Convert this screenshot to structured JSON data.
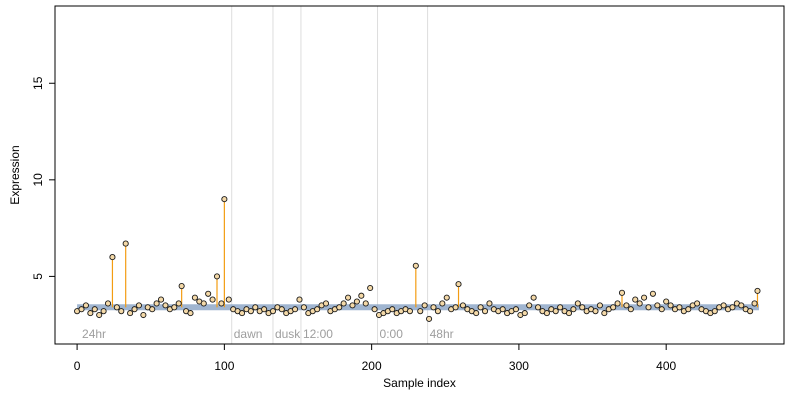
{
  "chart_data": {
    "type": "scatter",
    "title": "",
    "xlabel": "Sample index",
    "ylabel": "Expression",
    "xlim": [
      -15,
      480
    ],
    "ylim": [
      1.5,
      19
    ],
    "x_ticks": [
      0,
      100,
      200,
      300,
      400
    ],
    "y_ticks": [
      5,
      10,
      15
    ],
    "grid": false,
    "legend": "none",
    "colors": {
      "point_fill": "#f4d9a8",
      "point_stroke": "#1a1a1a",
      "stem": "#f39c12",
      "baseline": "#8fa8c8",
      "section_line": "#dddddd",
      "section_text": "#9e9e9e"
    },
    "baseline_value": 3.4,
    "baseline_x_range": [
      0,
      463
    ],
    "sections": [
      {
        "label": "24hr",
        "x": 2
      },
      {
        "label": "dawn",
        "x": 105
      },
      {
        "label": "dusk",
        "x": 133
      },
      {
        "label": "12:00",
        "x": 152
      },
      {
        "label": "0:00",
        "x": 204
      },
      {
        "label": "48hr",
        "x": 238
      }
    ],
    "boundaries": [
      105,
      133,
      152,
      204,
      238
    ],
    "stems": [
      {
        "x": 24,
        "y": 6.0
      },
      {
        "x": 33,
        "y": 6.7
      },
      {
        "x": 71,
        "y": 4.5
      },
      {
        "x": 95,
        "y": 5.0
      },
      {
        "x": 100,
        "y": 9.0
      },
      {
        "x": 230,
        "y": 5.55
      },
      {
        "x": 259,
        "y": 4.6
      },
      {
        "x": 370,
        "y": 4.15
      },
      {
        "x": 462,
        "y": 4.25
      }
    ],
    "series": [
      {
        "x": [
          0,
          3,
          6,
          9,
          12,
          15,
          18,
          21,
          24,
          27,
          30,
          33,
          36,
          39,
          42,
          45,
          48,
          51,
          54,
          57,
          60,
          63,
          66,
          69,
          71,
          74,
          77,
          80,
          83,
          86,
          89,
          92,
          95,
          98,
          100,
          103,
          106,
          109,
          112,
          115,
          118,
          121,
          124,
          127,
          130,
          133,
          136,
          139,
          142,
          145,
          148,
          151,
          154,
          157,
          160,
          163,
          166,
          169,
          172,
          175,
          178,
          181,
          184,
          187,
          190,
          193,
          196,
          199,
          202,
          205,
          208,
          211,
          214,
          217,
          220,
          223,
          226,
          230,
          233,
          236,
          239,
          242,
          245,
          248,
          251,
          254,
          257,
          259,
          262,
          265,
          268,
          271,
          274,
          277,
          280,
          283,
          286,
          289,
          292,
          295,
          298,
          301,
          304,
          307,
          310,
          313,
          316,
          319,
          322,
          325,
          328,
          331,
          334,
          337,
          340,
          343,
          346,
          349,
          352,
          355,
          358,
          361,
          364,
          367,
          370,
          373,
          376,
          379,
          382,
          385,
          388,
          391,
          394,
          397,
          400,
          403,
          406,
          409,
          412,
          415,
          418,
          421,
          424,
          427,
          430,
          433,
          436,
          439,
          442,
          445,
          448,
          451,
          454,
          457,
          460,
          462
        ],
        "y": [
          3.2,
          3.3,
          3.5,
          3.1,
          3.3,
          3.0,
          3.2,
          3.6,
          6.0,
          3.4,
          3.2,
          6.7,
          3.1,
          3.3,
          3.5,
          3.0,
          3.4,
          3.3,
          3.6,
          3.8,
          3.5,
          3.3,
          3.4,
          3.6,
          4.5,
          3.2,
          3.1,
          3.9,
          3.7,
          3.6,
          4.1,
          3.8,
          5.0,
          3.6,
          9.0,
          3.8,
          3.3,
          3.2,
          3.1,
          3.3,
          3.2,
          3.4,
          3.2,
          3.3,
          3.1,
          3.2,
          3.4,
          3.3,
          3.1,
          3.2,
          3.3,
          3.8,
          3.4,
          3.1,
          3.2,
          3.3,
          3.5,
          3.6,
          3.2,
          3.3,
          3.4,
          3.6,
          3.9,
          3.5,
          3.7,
          4.0,
          3.6,
          4.4,
          3.3,
          3.0,
          3.1,
          3.2,
          3.3,
          3.1,
          3.2,
          3.3,
          3.2,
          5.55,
          3.2,
          3.5,
          2.8,
          3.4,
          3.2,
          3.6,
          3.9,
          3.3,
          3.4,
          4.6,
          3.5,
          3.3,
          3.2,
          3.1,
          3.4,
          3.2,
          3.6,
          3.3,
          3.2,
          3.3,
          3.1,
          3.2,
          3.3,
          3.0,
          3.1,
          3.5,
          3.9,
          3.4,
          3.2,
          3.1,
          3.3,
          3.2,
          3.4,
          3.2,
          3.1,
          3.3,
          3.6,
          3.4,
          3.2,
          3.3,
          3.2,
          3.5,
          3.1,
          3.3,
          3.4,
          3.6,
          4.15,
          3.5,
          3.3,
          3.8,
          3.6,
          3.9,
          3.4,
          4.1,
          3.5,
          3.3,
          3.7,
          3.5,
          3.3,
          3.4,
          3.2,
          3.3,
          3.5,
          3.6,
          3.3,
          3.2,
          3.1,
          3.2,
          3.4,
          3.5,
          3.3,
          3.4,
          3.6,
          3.5,
          3.3,
          3.2,
          3.6,
          4.25
        ]
      }
    ]
  }
}
